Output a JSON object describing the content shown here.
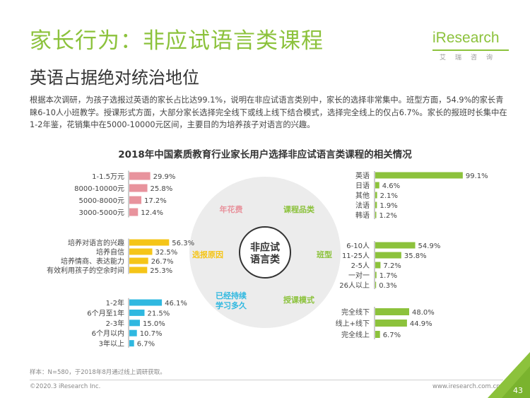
{
  "header": {
    "title": "家长行为：非应试语言类课程",
    "subtitle": "英语占据绝对统治地位"
  },
  "logo": {
    "text": "iResearch",
    "chinese": "艾瑞咨询"
  },
  "summary": "根据本次调研，为孩子选报过英语的家长占比达99.1%，说明在非应试语言类别中，家长的选择非常集中。班型方面，54.9%的家长青睐6-10人小班教学。授课形式方面，大部分家长选择完全线下或线上线下结合模式，选择完全线上的仅占6.7%。家长的报班时长集中在1-2年鉴，花销集中在5000-10000元区间，主要目的为培养孩子对语言的兴趣。",
  "chart_data": {
    "title": "2018年中国素质教育行业家长用户选择非应试语言类课程的相关情况",
    "type": "bar",
    "center_label": "非应试\n语言类",
    "colors": {
      "pink": "#e8939d",
      "yellow": "#f5c518",
      "blue": "#2fb8e0",
      "green": "#8cc23c",
      "circle": "#ececec"
    },
    "panels": [
      {
        "label": "年花费",
        "label_color": "#e8939d",
        "color": "#e8939d",
        "categories": [
          "1-1.5万元",
          "8000-10000元",
          "5000-8000元",
          "3000-5000元"
        ],
        "values": [
          29.9,
          25.8,
          17.2,
          12.4
        ],
        "value_labels": [
          "29.9%",
          "25.8%",
          "17.2%",
          "12.4%"
        ]
      },
      {
        "label": "选报原因",
        "label_color": "#f5c518",
        "color": "#f5c518",
        "categories": [
          "培养对语言的兴趣",
          "培养自信",
          "培养情商、表达能力",
          "有效利用孩子的空余时间"
        ],
        "values": [
          56.3,
          32.5,
          26.7,
          25.3
        ],
        "value_labels": [
          "56.3%",
          "32.5%",
          "26.7%",
          "25.3%"
        ]
      },
      {
        "label": "已经持续\n学习多久",
        "label_color": "#2fb8e0",
        "color": "#2fb8e0",
        "categories": [
          "1-2年",
          "6个月至1年",
          "2-3年",
          "6个月以内",
          "3年以上"
        ],
        "values": [
          46.1,
          21.5,
          15.0,
          10.7,
          6.7
        ],
        "value_labels": [
          "46.1%",
          "21.5%",
          "15.0%",
          "10.7%",
          "6.7%"
        ]
      },
      {
        "label": "课程品类",
        "label_color": "#8cc23c",
        "color": "#8cc23c",
        "categories": [
          "英语",
          "日语",
          "其他",
          "法语",
          "韩语"
        ],
        "values": [
          99.1,
          4.6,
          2.1,
          1.9,
          1.2
        ],
        "value_labels": [
          "99.1%",
          "4.6%",
          "2.1%",
          "1.9%",
          "1.2%"
        ]
      },
      {
        "label": "班型",
        "label_color": "#8cc23c",
        "color": "#8cc23c",
        "categories": [
          "6-10人",
          "11-25人",
          "2-5人",
          "一对一",
          "26人以上"
        ],
        "values": [
          54.9,
          35.8,
          7.2,
          1.7,
          0.3
        ],
        "value_labels": [
          "54.9%",
          "35.8%",
          "7.2%",
          "1.7%",
          "0.3%"
        ]
      },
      {
        "label": "授课模式",
        "label_color": "#8cc23c",
        "color": "#8cc23c",
        "categories": [
          "完全线下",
          "线上+线下",
          "完全线上"
        ],
        "values": [
          48.0,
          44.9,
          6.7
        ],
        "value_labels": [
          "48.0%",
          "44.9%",
          "6.7%"
        ]
      }
    ]
  },
  "footer": {
    "sample_note": "样本：N=580，于2018年8月通过线上调研获取。",
    "copyright": "©2020.3 iResearch Inc.",
    "website": "www.iresearch.com.cn",
    "page_number": "43"
  }
}
